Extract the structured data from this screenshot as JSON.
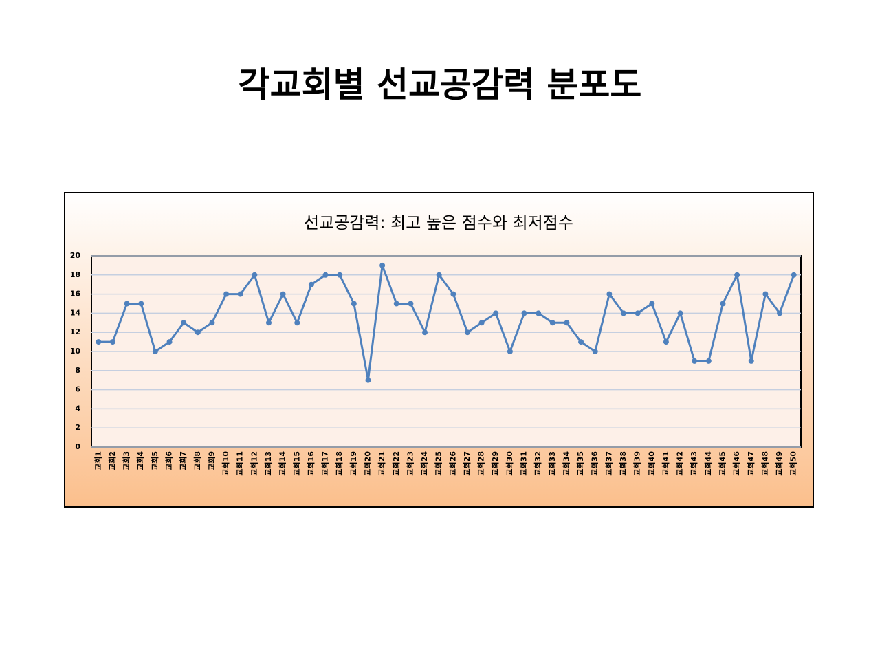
{
  "page_title": "각교회별 선교공감력 분포도",
  "chart_data": {
    "type": "line",
    "title": "선교공감력: 최고 높은 점수와 최저점수",
    "categories": [
      "교회1",
      "교회2",
      "교회3",
      "교회4",
      "교회5",
      "교회6",
      "교회7",
      "교회8",
      "교회9",
      "교회10",
      "교회11",
      "교회12",
      "교회13",
      "교회14",
      "교회15",
      "교회16",
      "교회17",
      "교회18",
      "교회19",
      "교회20",
      "교회21",
      "교회22",
      "교회23",
      "교회24",
      "교회25",
      "교회26",
      "교회27",
      "교회28",
      "교회29",
      "교회30",
      "교회31",
      "교회32",
      "교회33",
      "교회34",
      "교회35",
      "교회36",
      "교회37",
      "교회38",
      "교회39",
      "교회40",
      "교회41",
      "교회42",
      "교회43",
      "교회44",
      "교회45",
      "교회46",
      "교회47",
      "교회48",
      "교회49",
      "교회50"
    ],
    "values": [
      11,
      11,
      15,
      15,
      10,
      11,
      13,
      12,
      13,
      16,
      16,
      18,
      13,
      16,
      13,
      17,
      18,
      18,
      15,
      7,
      19,
      15,
      15,
      12,
      18,
      16,
      12,
      13,
      14,
      10,
      14,
      14,
      13,
      13,
      11,
      10,
      16,
      14,
      14,
      15,
      11,
      14,
      9,
      9,
      15,
      18,
      9,
      16,
      14,
      18
    ],
    "color": "#4f81bd",
    "ylim": [
      0,
      20
    ],
    "yticks": [
      0,
      2,
      4,
      6,
      8,
      10,
      12,
      14,
      16,
      18,
      20
    ],
    "grid": true
  }
}
